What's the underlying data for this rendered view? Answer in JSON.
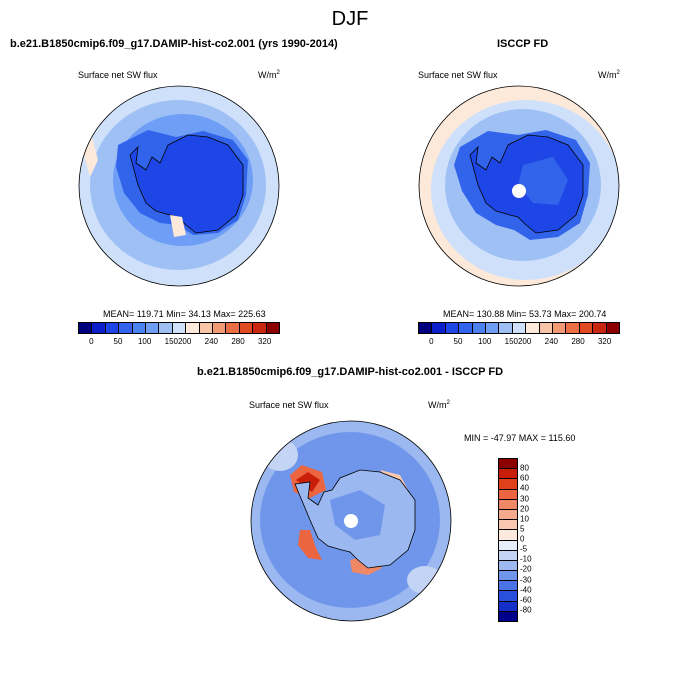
{
  "season": "DJF",
  "panels": {
    "model": {
      "title": "b.e21.B1850cmip6.f09_g17.DAMIP-hist-co2.001 (yrs 1990-2014)",
      "variable": "Surface net SW flux",
      "units": "W/m",
      "units_exp": "2",
      "stats": "MEAN= 119.71  Min=  34.13  Max= 225.63"
    },
    "obs": {
      "title": "ISCCP FD",
      "variable": "Surface net SW flux",
      "units": "W/m",
      "units_exp": "2",
      "stats": "MEAN= 130.88  Min=  53.73  Max= 200.74"
    },
    "diff": {
      "title": "b.e21.B1850cmip6.f09_g17.DAMIP-hist-co2.001 - ISCCP FD",
      "variable": "Surface net SW flux",
      "units": "W/m",
      "units_exp": "2",
      "stats": "MIN = -47.97 MAX = 115.60"
    }
  },
  "colorbar_abs": {
    "labels": [
      "0",
      "50",
      "100",
      "150",
      "200",
      "240",
      "280",
      "320"
    ],
    "colors": [
      "#00007f",
      "#0a1fc8",
      "#1e46e6",
      "#3264eb",
      "#4a82f0",
      "#6e9ef5",
      "#9ec0f5",
      "#cfe0fa",
      "#fde9d9",
      "#f7c4a5",
      "#f29a72",
      "#eb6e45",
      "#e04a22",
      "#c82810",
      "#8b0000"
    ]
  },
  "colorbar_diff": {
    "labels": [
      "80",
      "60",
      "40",
      "30",
      "20",
      "10",
      "5",
      "0",
      "-5",
      "-10",
      "-20",
      "-30",
      "-40",
      "-60",
      "-80"
    ],
    "colors": [
      "#8b0000",
      "#c81e0a",
      "#e0401a",
      "#eb6640",
      "#f08866",
      "#f5aa8c",
      "#fac8b0",
      "#fde9de",
      "#e8eefa",
      "#c4d4f5",
      "#9cb8f0",
      "#7096eb",
      "#4a73e6",
      "#2850dc",
      "#1430c8",
      "#00008b"
    ]
  }
}
